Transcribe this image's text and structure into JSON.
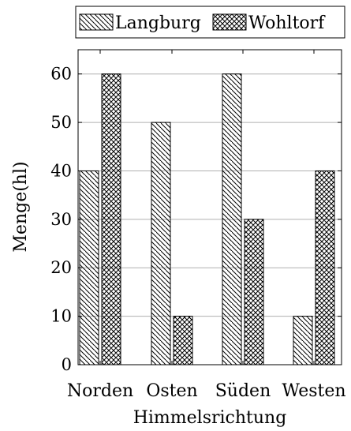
{
  "chart_data": {
    "type": "bar",
    "title": "",
    "xlabel": "Himmelsrichtung",
    "ylabel": "Menge(hl)",
    "categories": [
      "Norden",
      "Osten",
      "Süden",
      "Westen"
    ],
    "series": [
      {
        "name": "Langburg",
        "values": [
          40,
          50,
          60,
          10
        ],
        "pattern": "diagonal-hatch"
      },
      {
        "name": "Wohltorf",
        "values": [
          60,
          10,
          30,
          40
        ],
        "pattern": "crosshatch"
      }
    ],
    "ylim": [
      0,
      65
    ],
    "yticks": [
      0,
      10,
      20,
      30,
      40,
      50,
      60
    ],
    "grid": true,
    "legend_position": "top"
  }
}
